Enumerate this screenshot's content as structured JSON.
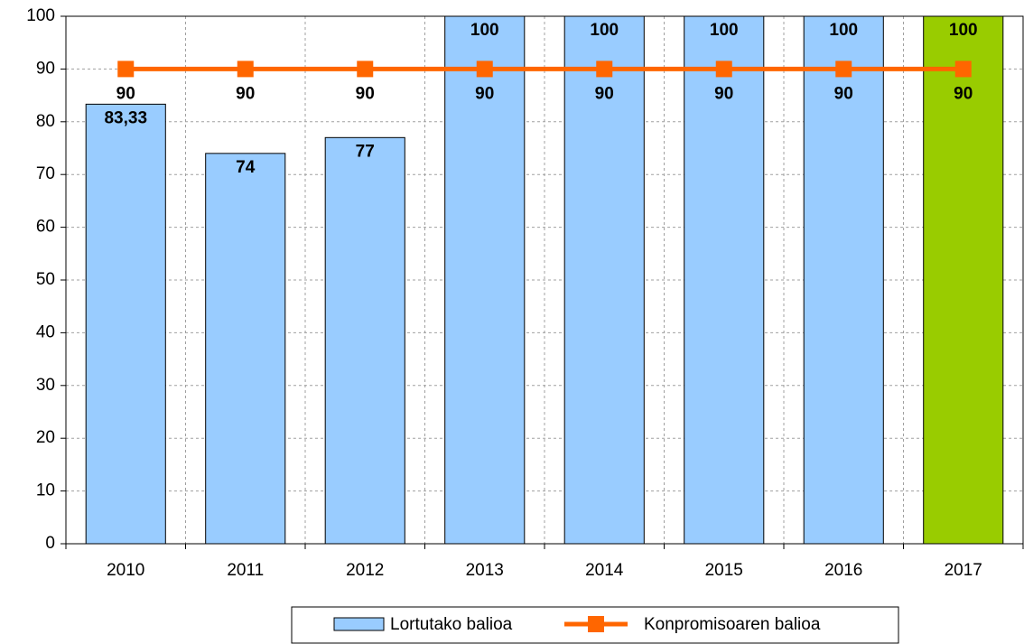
{
  "chart_data": {
    "type": "bar",
    "categories": [
      "2010",
      "2011",
      "2012",
      "2013",
      "2014",
      "2015",
      "2016",
      "2017"
    ],
    "series": [
      {
        "name": "Lortutako balioa",
        "type": "bar",
        "color": "#99ccff",
        "colors": [
          "#99ccff",
          "#99ccff",
          "#99ccff",
          "#99ccff",
          "#99ccff",
          "#99ccff",
          "#99ccff",
          "#99cc00"
        ],
        "label_color": "#333399",
        "values": [
          83.33,
          74,
          77,
          100,
          100,
          100,
          100,
          100
        ],
        "value_labels": [
          "83,33",
          "74",
          "77",
          "100",
          "100",
          "100",
          "100",
          "100"
        ]
      },
      {
        "name": "Konpromisoaren balioa",
        "type": "line",
        "color": "#ff6600",
        "label_color": "#000000",
        "values": [
          90,
          90,
          90,
          90,
          90,
          90,
          90,
          90
        ]
      }
    ],
    "ylim": [
      0,
      100
    ],
    "yticks": [
      0,
      10,
      20,
      30,
      40,
      50,
      60,
      70,
      80,
      90,
      100
    ],
    "grid": true,
    "legend": "bottom"
  }
}
